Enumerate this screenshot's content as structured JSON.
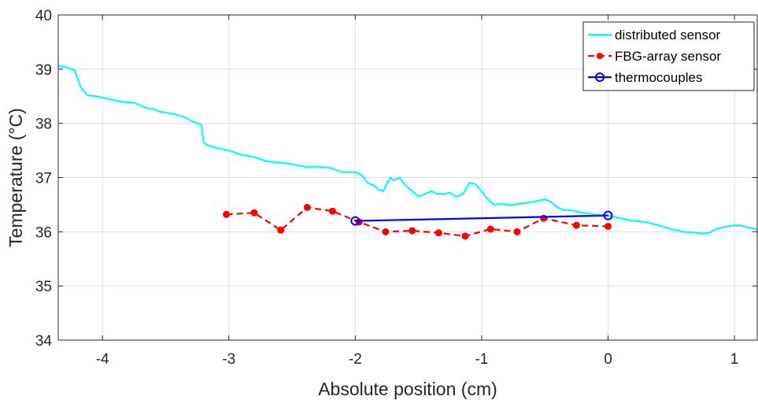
{
  "chart_data": {
    "type": "line",
    "title": "",
    "xlabel": "Absolute position (cm)",
    "ylabel": "Temperature (°C)",
    "xlim": [
      -4.35,
      1.18
    ],
    "ylim": [
      34,
      40
    ],
    "xticks": [
      -4,
      -3,
      -2,
      -1,
      0,
      1
    ],
    "yticks": [
      34,
      35,
      36,
      37,
      38,
      39,
      40
    ],
    "grid": true,
    "legend_position": "top-right",
    "series": [
      {
        "name": "distributed sensor",
        "color": "#00ffff",
        "style": "solid",
        "marker": "none",
        "x": [
          -4.35,
          -4.3,
          -4.22,
          -4.17,
          -4.12,
          -4.05,
          -3.95,
          -3.85,
          -3.75,
          -3.65,
          -3.6,
          -3.55,
          -3.5,
          -3.45,
          -3.4,
          -3.35,
          -3.3,
          -3.25,
          -3.22,
          -3.2,
          -3.17,
          -3.1,
          -3.0,
          -2.9,
          -2.8,
          -2.7,
          -2.6,
          -2.5,
          -2.4,
          -2.3,
          -2.2,
          -2.1,
          -2.0,
          -1.95,
          -1.9,
          -1.85,
          -1.82,
          -1.78,
          -1.75,
          -1.72,
          -1.7,
          -1.65,
          -1.6,
          -1.55,
          -1.5,
          -1.45,
          -1.4,
          -1.35,
          -1.3,
          -1.25,
          -1.2,
          -1.15,
          -1.12,
          -1.1,
          -1.05,
          -1.0,
          -0.97,
          -0.93,
          -0.9,
          -0.85,
          -0.8,
          -0.75,
          -0.7,
          -0.6,
          -0.5,
          -0.45,
          -0.4,
          -0.35,
          -0.3,
          -0.2,
          -0.1,
          0.0,
          0.1,
          0.2,
          0.3,
          0.4,
          0.5,
          0.6,
          0.7,
          0.75,
          0.8,
          0.85,
          0.9,
          1.0,
          1.05,
          1.1,
          1.18
        ],
        "y": [
          39.05,
          39.05,
          38.98,
          38.65,
          38.52,
          38.5,
          38.45,
          38.4,
          38.38,
          38.28,
          38.27,
          38.22,
          38.2,
          38.18,
          38.15,
          38.12,
          38.05,
          38.0,
          37.98,
          37.65,
          37.6,
          37.55,
          37.5,
          37.42,
          37.38,
          37.3,
          37.28,
          37.25,
          37.2,
          37.2,
          37.18,
          37.1,
          37.1,
          37.05,
          36.9,
          36.85,
          36.78,
          36.75,
          36.9,
          37.0,
          36.95,
          37.0,
          36.85,
          36.75,
          36.65,
          36.7,
          36.75,
          36.7,
          36.7,
          36.72,
          36.65,
          36.7,
          36.8,
          36.9,
          36.88,
          36.75,
          36.65,
          36.55,
          36.5,
          36.52,
          36.5,
          36.5,
          36.52,
          36.55,
          36.6,
          36.55,
          36.45,
          36.4,
          36.4,
          36.35,
          36.32,
          36.3,
          36.25,
          36.2,
          36.18,
          36.12,
          36.05,
          36.0,
          35.98,
          35.97,
          35.98,
          36.05,
          36.08,
          36.12,
          36.12,
          36.08,
          36.05
        ]
      },
      {
        "name": "FBG-array sensor",
        "color": "#ff0000",
        "style": "dashed",
        "marker": "filled-circle",
        "x": [
          -3.02,
          -2.8,
          -2.59,
          -2.38,
          -2.18,
          -1.97,
          -1.76,
          -1.55,
          -1.34,
          -1.13,
          -0.93,
          -0.72,
          -0.51,
          -0.25,
          0.0
        ],
        "y": [
          36.32,
          36.35,
          36.03,
          36.45,
          36.38,
          36.18,
          36.0,
          36.02,
          35.98,
          35.92,
          36.05,
          36.0,
          36.25,
          36.12,
          36.1
        ]
      },
      {
        "name": "thermocouples",
        "color": "#0000ff",
        "style": "solid",
        "marker": "open-circle",
        "x": [
          -2.0,
          0.0
        ],
        "y": [
          36.2,
          36.3
        ]
      }
    ]
  }
}
